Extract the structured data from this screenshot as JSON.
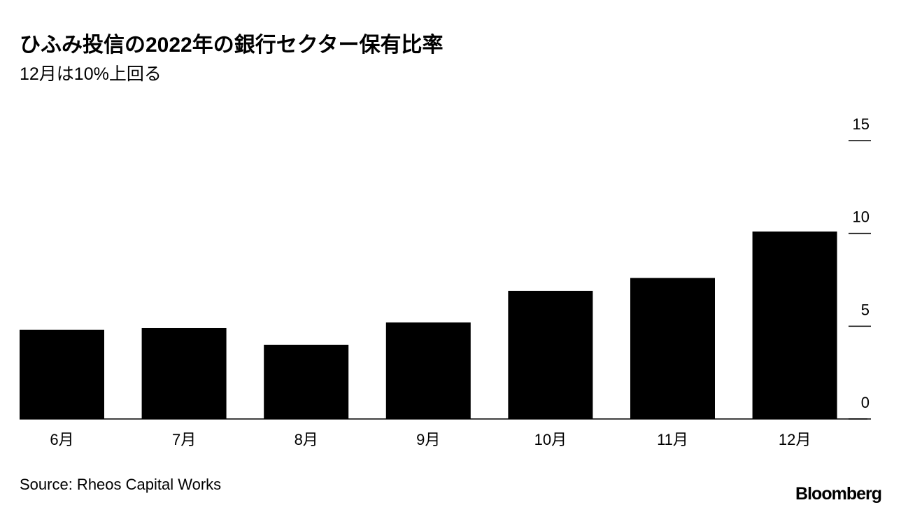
{
  "chart_data": {
    "type": "bar",
    "title": "ひふみ投信の2022年の銀行セクター保有比率",
    "subtitle": "12月は10%上回る",
    "categories": [
      "6月",
      "7月",
      "8月",
      "9月",
      "10月",
      "11月",
      "12月"
    ],
    "values": [
      4.8,
      4.9,
      4.0,
      5.2,
      6.9,
      7.6,
      10.1
    ],
    "color": "#000000",
    "ylim": [
      0,
      15
    ],
    "yticks": [
      0,
      5,
      10,
      15
    ],
    "source": "Source: Rheos Capital Works",
    "brand": "Bloomberg"
  }
}
